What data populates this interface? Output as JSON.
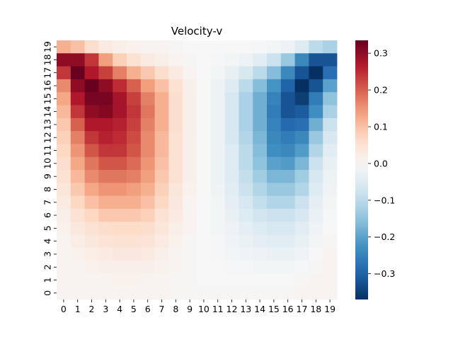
{
  "chart_data": {
    "type": "heatmap",
    "title": "Velocity-v",
    "xlabel": "",
    "ylabel": "",
    "x_labels": [
      "0",
      "1",
      "2",
      "3",
      "4",
      "5",
      "6",
      "7",
      "8",
      "9",
      "10",
      "11",
      "12",
      "13",
      "14",
      "15",
      "16",
      "17",
      "18",
      "19"
    ],
    "y_labels": [
      "0",
      "1",
      "2",
      "3",
      "4",
      "5",
      "6",
      "7",
      "8",
      "9",
      "10",
      "11",
      "12",
      "13",
      "14",
      "15",
      "16",
      "17",
      "18",
      "19"
    ],
    "y_order": "bottom-to-top",
    "colormap": "RdBu_r",
    "colorbar": {
      "vmin": -0.37,
      "vmax": 0.335,
      "ticks": [
        -0.3,
        -0.2,
        -0.1,
        0.0,
        0.1,
        0.2,
        0.3
      ],
      "tick_labels": [
        "−0.3",
        "−0.2",
        "−0.1",
        "0.0",
        "0.1",
        "0.2",
        "0.3"
      ]
    },
    "values_rows_top_to_bottom": [
      [
        0.12,
        0.1,
        0.06,
        0.03,
        0.02,
        0.015,
        0.01,
        0.01,
        0.005,
        0.0,
        0.0,
        0.0,
        0.0,
        0.0,
        -0.005,
        -0.01,
        -0.02,
        -0.05,
        -0.1,
        -0.12
      ],
      [
        0.3,
        0.3,
        0.24,
        0.14,
        0.08,
        0.05,
        0.03,
        0.02,
        0.01,
        0.005,
        0.0,
        -0.005,
        -0.01,
        -0.02,
        -0.04,
        -0.08,
        -0.14,
        -0.24,
        -0.32,
        -0.32
      ],
      [
        0.24,
        0.34,
        0.27,
        0.23,
        0.17,
        0.12,
        0.09,
        0.06,
        0.03,
        0.01,
        0.0,
        -0.01,
        -0.03,
        -0.06,
        -0.1,
        -0.16,
        -0.24,
        -0.32,
        -0.37,
        -0.28
      ],
      [
        0.16,
        0.3,
        0.34,
        0.3,
        0.25,
        0.2,
        0.14,
        0.1,
        0.05,
        0.02,
        0.0,
        -0.02,
        -0.05,
        -0.1,
        -0.16,
        -0.22,
        -0.3,
        -0.37,
        -0.32,
        -0.2
      ],
      [
        0.13,
        0.27,
        0.32,
        0.32,
        0.28,
        0.23,
        0.17,
        0.12,
        0.06,
        0.02,
        0.0,
        -0.02,
        -0.06,
        -0.12,
        -0.18,
        -0.25,
        -0.32,
        -0.35,
        -0.26,
        -0.15
      ],
      [
        0.11,
        0.24,
        0.3,
        0.31,
        0.28,
        0.24,
        0.18,
        0.12,
        0.06,
        0.02,
        0.0,
        -0.02,
        -0.06,
        -0.12,
        -0.18,
        -0.26,
        -0.32,
        -0.31,
        -0.23,
        -0.12
      ],
      [
        0.09,
        0.2,
        0.27,
        0.27,
        0.26,
        0.23,
        0.17,
        0.12,
        0.06,
        0.02,
        0.0,
        -0.02,
        -0.06,
        -0.12,
        -0.18,
        -0.25,
        -0.29,
        -0.28,
        -0.18,
        -0.08
      ],
      [
        0.08,
        0.17,
        0.24,
        0.26,
        0.25,
        0.22,
        0.16,
        0.11,
        0.05,
        0.02,
        0.0,
        -0.02,
        -0.06,
        -0.11,
        -0.17,
        -0.24,
        -0.26,
        -0.24,
        -0.14,
        -0.06
      ],
      [
        0.07,
        0.15,
        0.21,
        0.24,
        0.24,
        0.21,
        0.16,
        0.11,
        0.05,
        0.02,
        0.0,
        -0.02,
        -0.05,
        -0.1,
        -0.16,
        -0.23,
        -0.24,
        -0.21,
        -0.11,
        -0.04
      ],
      [
        0.06,
        0.13,
        0.18,
        0.21,
        0.21,
        0.19,
        0.15,
        0.1,
        0.05,
        0.02,
        0.0,
        -0.02,
        -0.05,
        -0.1,
        -0.15,
        -0.2,
        -0.21,
        -0.17,
        -0.08,
        -0.03
      ],
      [
        0.05,
        0.11,
        0.16,
        0.18,
        0.18,
        0.17,
        0.14,
        0.09,
        0.05,
        0.02,
        0.0,
        -0.02,
        -0.05,
        -0.09,
        -0.13,
        -0.17,
        -0.17,
        -0.13,
        -0.06,
        -0.02
      ],
      [
        0.04,
        0.09,
        0.13,
        0.15,
        0.15,
        0.14,
        0.12,
        0.08,
        0.04,
        0.015,
        0.0,
        -0.015,
        -0.04,
        -0.08,
        -0.11,
        -0.14,
        -0.14,
        -0.11,
        -0.05,
        -0.015
      ],
      [
        0.03,
        0.07,
        0.1,
        0.12,
        0.12,
        0.12,
        0.1,
        0.07,
        0.035,
        0.01,
        0.0,
        -0.01,
        -0.035,
        -0.06,
        -0.09,
        -0.11,
        -0.11,
        -0.08,
        -0.035,
        -0.01
      ],
      [
        0.02,
        0.05,
        0.07,
        0.09,
        0.09,
        0.09,
        0.08,
        0.05,
        0.03,
        0.01,
        0.0,
        -0.01,
        -0.03,
        -0.05,
        -0.07,
        -0.08,
        -0.08,
        -0.06,
        -0.025,
        -0.005
      ],
      [
        0.015,
        0.035,
        0.05,
        0.06,
        0.065,
        0.065,
        0.06,
        0.04,
        0.02,
        0.01,
        0.0,
        -0.01,
        -0.02,
        -0.035,
        -0.05,
        -0.06,
        -0.06,
        -0.04,
        -0.015,
        0.0
      ],
      [
        0.01,
        0.025,
        0.035,
        0.045,
        0.05,
        0.05,
        0.045,
        0.03,
        0.015,
        0.005,
        0.0,
        -0.005,
        -0.015,
        -0.025,
        -0.035,
        -0.04,
        -0.04,
        -0.03,
        -0.01,
        0.005
      ],
      [
        0.01,
        0.015,
        0.025,
        0.03,
        0.035,
        0.035,
        0.03,
        0.02,
        0.01,
        0.005,
        0.0,
        -0.005,
        -0.01,
        -0.015,
        -0.02,
        -0.025,
        -0.025,
        -0.015,
        0.0,
        0.01
      ],
      [
        0.01,
        0.01,
        0.015,
        0.02,
        0.02,
        0.02,
        0.02,
        0.015,
        0.01,
        0.005,
        0.0,
        0.0,
        -0.005,
        -0.005,
        -0.01,
        -0.01,
        -0.01,
        -0.005,
        0.005,
        0.01
      ],
      [
        0.01,
        0.01,
        0.01,
        0.01,
        0.015,
        0.015,
        0.01,
        0.01,
        0.005,
        0.005,
        0.0,
        0.0,
        0.0,
        0.0,
        0.0,
        0.0,
        0.0,
        0.005,
        0.01,
        0.01
      ],
      [
        0.01,
        0.01,
        0.01,
        0.01,
        0.01,
        0.01,
        0.01,
        0.01,
        0.005,
        0.005,
        0.005,
        0.005,
        0.005,
        0.005,
        0.005,
        0.005,
        0.005,
        0.01,
        0.01,
        0.01
      ]
    ]
  }
}
